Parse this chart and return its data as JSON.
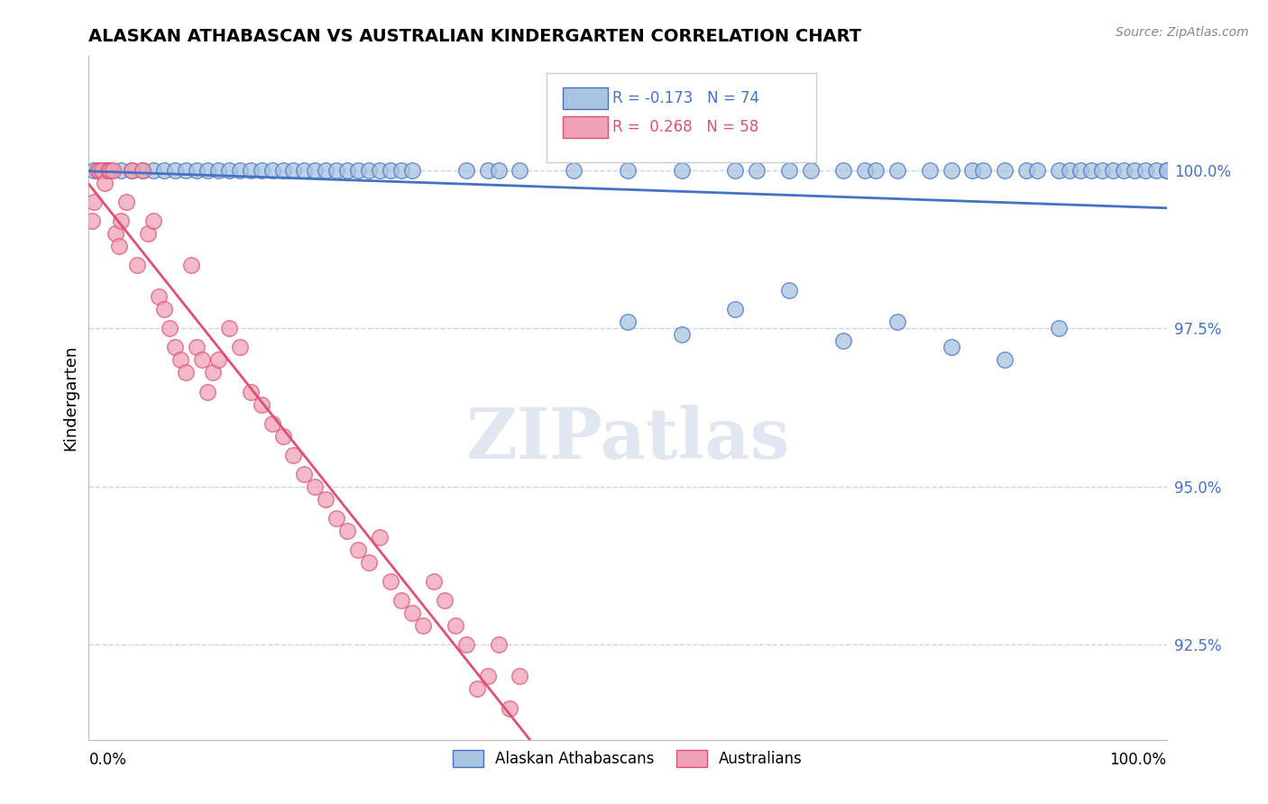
{
  "title": "ALASKAN ATHABASCAN VS AUSTRALIAN KINDERGARTEN CORRELATION CHART",
  "source": "Source: ZipAtlas.com",
  "ylabel": "Kindergarten",
  "ytick_values": [
    92.5,
    95.0,
    97.5,
    100.0
  ],
  "legend_labels": [
    "Alaskan Athabascans",
    "Australians"
  ],
  "legend_r_blue": "R = -0.173",
  "legend_n_blue": "N = 74",
  "legend_r_pink": "R =  0.268",
  "legend_n_pink": "N = 58",
  "blue_color": "#a8c4e0",
  "pink_color": "#f0a0b8",
  "trend_blue": "#4472c4",
  "trend_pink": "#e05070",
  "background": "#ffffff",
  "grid_color": "#c8d4e8",
  "blue_points_x": [
    0.5,
    1.5,
    2.0,
    3.0,
    4.0,
    5.0,
    6.0,
    7.0,
    8.0,
    9.0,
    10.0,
    11.0,
    12.0,
    13.0,
    14.0,
    15.0,
    16.0,
    17.0,
    18.0,
    19.0,
    20.0,
    21.0,
    22.0,
    23.0,
    24.0,
    25.0,
    26.0,
    27.0,
    28.0,
    29.0,
    30.0,
    35.0,
    37.0,
    38.0,
    40.0,
    45.0,
    50.0,
    55.0,
    60.0,
    62.0,
    65.0,
    67.0,
    70.0,
    72.0,
    73.0,
    75.0,
    78.0,
    80.0,
    82.0,
    83.0,
    85.0,
    87.0,
    88.0,
    90.0,
    91.0,
    92.0,
    93.0,
    94.0,
    95.0,
    96.0,
    97.0,
    98.0,
    99.0,
    100.0,
    50.0,
    55.0,
    60.0,
    65.0,
    70.0,
    75.0,
    80.0,
    85.0,
    90.0,
    100.0
  ],
  "blue_points_y": [
    100.0,
    100.0,
    100.0,
    100.0,
    100.0,
    100.0,
    100.0,
    100.0,
    100.0,
    100.0,
    100.0,
    100.0,
    100.0,
    100.0,
    100.0,
    100.0,
    100.0,
    100.0,
    100.0,
    100.0,
    100.0,
    100.0,
    100.0,
    100.0,
    100.0,
    100.0,
    100.0,
    100.0,
    100.0,
    100.0,
    100.0,
    100.0,
    100.0,
    100.0,
    100.0,
    100.0,
    100.0,
    100.0,
    100.0,
    100.0,
    100.0,
    100.0,
    100.0,
    100.0,
    100.0,
    100.0,
    100.0,
    100.0,
    100.0,
    100.0,
    100.0,
    100.0,
    100.0,
    100.0,
    100.0,
    100.0,
    100.0,
    100.0,
    100.0,
    100.0,
    100.0,
    100.0,
    100.0,
    100.0,
    97.6,
    97.4,
    97.8,
    98.1,
    97.3,
    97.6,
    97.2,
    97.0,
    97.5,
    100.0
  ],
  "pink_points_x": [
    0.3,
    0.5,
    0.8,
    1.0,
    1.2,
    1.5,
    1.8,
    2.0,
    2.2,
    2.5,
    2.8,
    3.0,
    3.5,
    4.0,
    4.5,
    5.0,
    5.5,
    6.0,
    6.5,
    7.0,
    7.5,
    8.0,
    8.5,
    9.0,
    9.5,
    10.0,
    10.5,
    11.0,
    11.5,
    12.0,
    13.0,
    14.0,
    15.0,
    16.0,
    17.0,
    18.0,
    19.0,
    20.0,
    21.0,
    22.0,
    23.0,
    24.0,
    25.0,
    26.0,
    27.0,
    28.0,
    29.0,
    30.0,
    31.0,
    32.0,
    33.0,
    34.0,
    35.0,
    36.0,
    37.0,
    38.0,
    39.0,
    40.0
  ],
  "pink_points_y": [
    99.2,
    99.5,
    100.0,
    100.0,
    100.0,
    99.8,
    100.0,
    100.0,
    100.0,
    99.0,
    98.8,
    99.2,
    99.5,
    100.0,
    98.5,
    100.0,
    99.0,
    99.2,
    98.0,
    97.8,
    97.5,
    97.2,
    97.0,
    96.8,
    98.5,
    97.2,
    97.0,
    96.5,
    96.8,
    97.0,
    97.5,
    97.2,
    96.5,
    96.3,
    96.0,
    95.8,
    95.5,
    95.2,
    95.0,
    94.8,
    94.5,
    94.3,
    94.0,
    93.8,
    94.2,
    93.5,
    93.2,
    93.0,
    92.8,
    93.5,
    93.2,
    92.8,
    92.5,
    91.8,
    92.0,
    92.5,
    91.5,
    92.0
  ],
  "xlim": [
    0,
    100
  ],
  "ylim": [
    91.0,
    101.8
  ],
  "xpct_left": "0.0%",
  "xpct_right": "100.0%"
}
